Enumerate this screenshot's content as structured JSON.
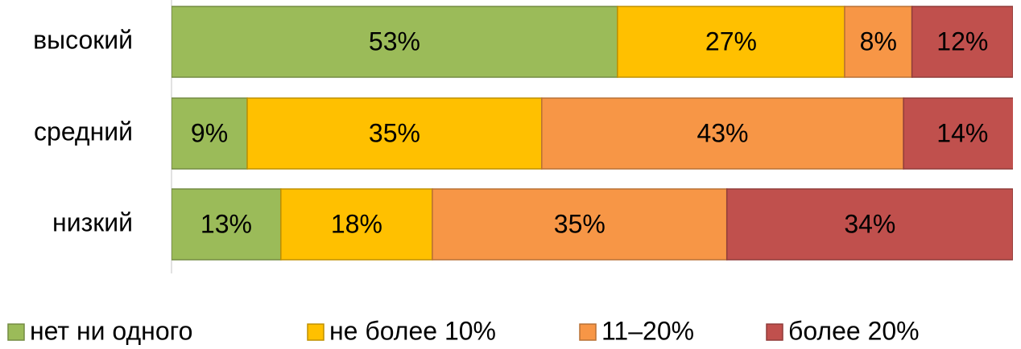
{
  "chart_data": {
    "type": "stacked-bar-horizontal",
    "categories": [
      "высокий",
      "средний",
      "низкий"
    ],
    "series": [
      {
        "name": "нет ни одного",
        "color": "#9bbb59",
        "values": [
          53,
          9,
          13
        ],
        "value_labels": [
          "53%",
          "9%",
          "13%"
        ]
      },
      {
        "name": "не более 10%",
        "color": "#ffc000",
        "values": [
          27,
          35,
          18
        ],
        "value_labels": [
          "27%",
          "35%",
          "18%"
        ]
      },
      {
        "name": "11–20%",
        "color": "#f79646",
        "values": [
          8,
          43,
          35
        ],
        "value_labels": [
          "8%",
          "43%",
          "35%"
        ]
      },
      {
        "name": "более 20%",
        "color": "#c0504d",
        "values": [
          12,
          14,
          34
        ],
        "value_labels": [
          "12%",
          "14%",
          "34%"
        ]
      }
    ],
    "xlim": [
      0,
      100
    ],
    "legend": "bottom"
  }
}
